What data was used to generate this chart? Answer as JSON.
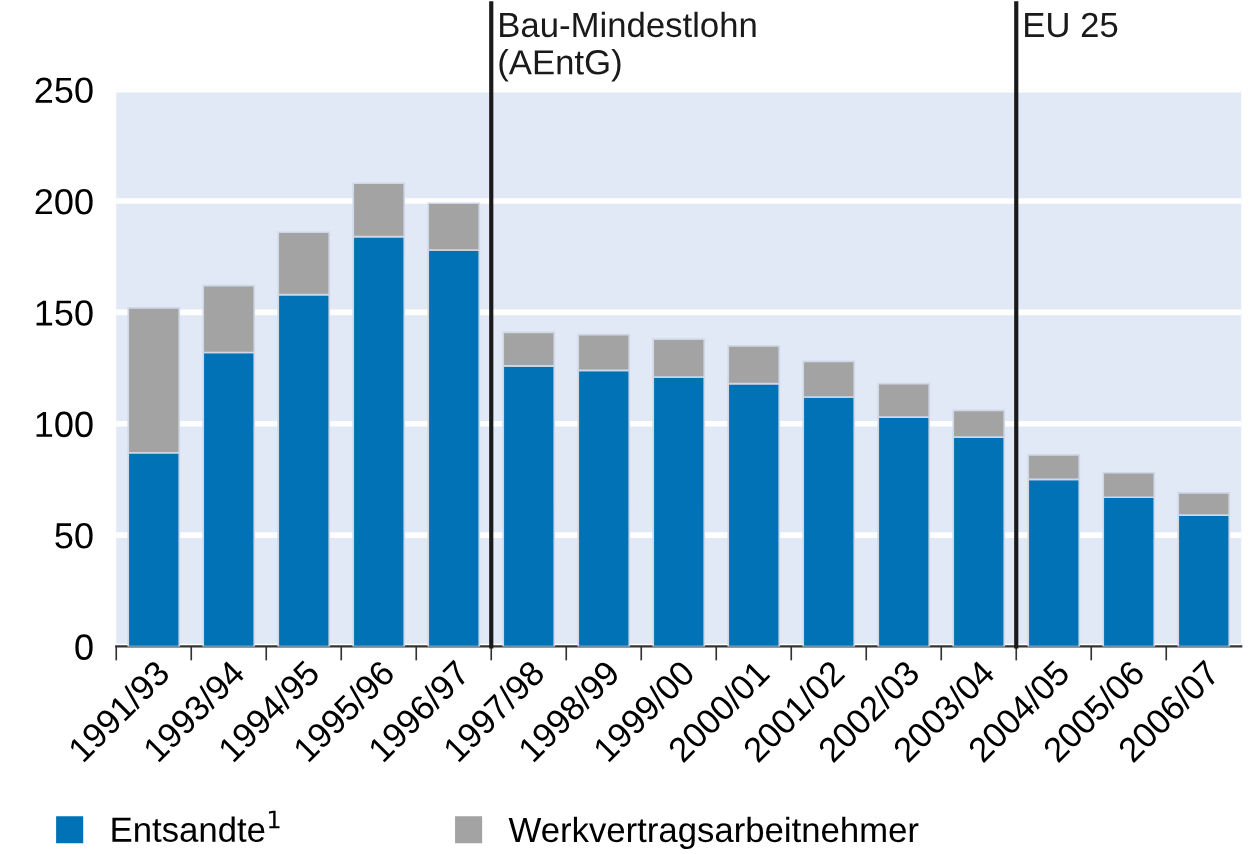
{
  "chart_data": {
    "type": "bar",
    "stacked": true,
    "categories": [
      "1991/93",
      "1993/94",
      "1994/95",
      "1995/96",
      "1996/97",
      "1997/98",
      "1998/99",
      "1999/00",
      "2000/01",
      "2001/02",
      "2002/03",
      "2003/04",
      "2004/05",
      "2005/06",
      "2006/07"
    ],
    "series": [
      {
        "name": "Entsandte$^{1}$",
        "color": "#0072b5",
        "values": [
          87,
          132,
          158,
          184,
          178,
          126,
          124,
          121,
          118,
          112,
          103,
          94,
          75,
          67,
          59
        ]
      },
      {
        "name": "Werkvertragsarbeitnehmer",
        "color": "#a3a3a3",
        "values": [
          65,
          30,
          28,
          24,
          21,
          15,
          16,
          17,
          17,
          16,
          15,
          12,
          11,
          11,
          10
        ]
      }
    ],
    "ylim": [
      0,
      250
    ],
    "yticks": [
      0,
      50,
      100,
      150,
      200,
      250
    ],
    "grid": "y",
    "legend": "bottom",
    "ref_lines": [
      {
        "axis": "x",
        "value": "1997/98",
        "label": "Bau-Mindestlohn\n(AEntG)",
        "color": "#1a1a1a"
      },
      {
        "axis": "x",
        "value": "2004/05",
        "label": "EU 25",
        "color": "#1a1a1a"
      }
    ]
  }
}
